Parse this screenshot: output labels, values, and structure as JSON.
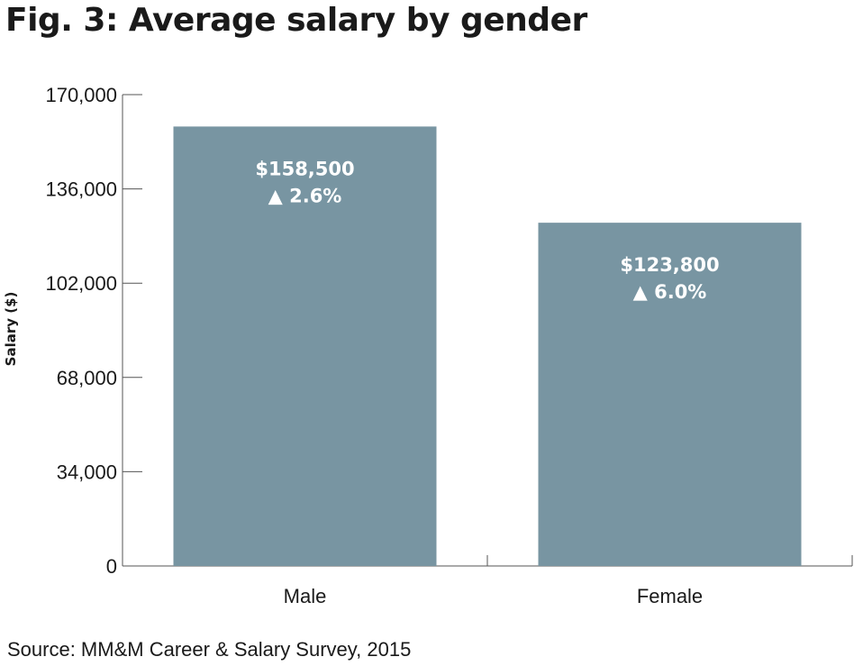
{
  "title": "Fig. 3: Average salary by gender",
  "source": "Source: MM&M Career & Salary Survey, 2015",
  "chart_data": {
    "type": "bar",
    "title": "Fig. 3: Average salary by gender",
    "xlabel": "",
    "ylabel": "Salary ($)",
    "categories": [
      "Male",
      "Female"
    ],
    "values": [
      158500,
      123800
    ],
    "ylim": [
      0,
      170000
    ],
    "yticks": [
      0,
      34000,
      68000,
      102000,
      136000,
      170000
    ],
    "ytick_labels": [
      "0",
      "34,000",
      "68,000",
      "102,000",
      "136,000",
      "170,000"
    ],
    "data_labels": [
      {
        "value": "$158,500",
        "change": "▲ 2.6%"
      },
      {
        "value": "$123,800",
        "change": "▲ 6.0%"
      }
    ],
    "bar_color": "#7895a2",
    "grid": false,
    "legend": "none"
  }
}
